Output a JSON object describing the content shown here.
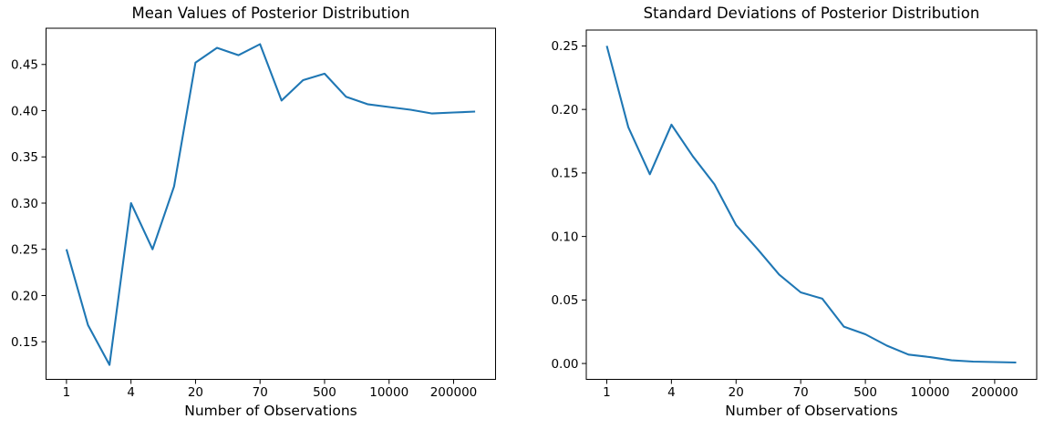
{
  "figure": {
    "background_color": "#ffffff",
    "line_color": "#1f77b4",
    "axis_color": "#000000"
  },
  "chart_data": [
    {
      "type": "line",
      "title": "Mean Values of Posterior Distribution",
      "xlabel": "Number of Observations",
      "ylabel": "",
      "x_axis_note": "20 evenly spaced points indexed 0-19; tick labels show observation counts",
      "x": [
        0,
        1,
        2,
        3,
        4,
        5,
        6,
        7,
        8,
        9,
        10,
        11,
        12,
        13,
        14,
        15,
        16,
        17,
        18,
        19
      ],
      "values": [
        0.25,
        0.168,
        0.125,
        0.3,
        0.25,
        0.318,
        0.452,
        0.468,
        0.46,
        0.472,
        0.411,
        0.433,
        0.44,
        0.415,
        0.407,
        0.404,
        0.401,
        0.397,
        0.398,
        0.399
      ],
      "x_tick_positions": [
        0,
        3,
        6,
        9,
        12,
        15,
        18
      ],
      "x_tick_labels": [
        "1",
        "4",
        "20",
        "70",
        "500",
        "10000",
        "200000"
      ],
      "y_tick_values": [
        0.15,
        0.2,
        0.25,
        0.3,
        0.35,
        0.4,
        0.45
      ],
      "y_tick_labels": [
        "0.15",
        "0.20",
        "0.25",
        "0.30",
        "0.35",
        "0.40",
        "0.45"
      ],
      "xlim": [
        -0.95,
        19.95
      ],
      "ylim": [
        0.1093,
        0.4892
      ],
      "grid": false,
      "legend": null
    },
    {
      "type": "line",
      "title": "Standard Deviations of Posterior Distribution",
      "xlabel": "Number of Observations",
      "ylabel": "",
      "x_axis_note": "20 evenly spaced points indexed 0-19; tick labels show observation counts",
      "x": [
        0,
        1,
        2,
        3,
        4,
        5,
        6,
        7,
        8,
        9,
        10,
        11,
        12,
        13,
        14,
        15,
        16,
        17,
        18,
        19
      ],
      "values": [
        0.25,
        0.186,
        0.149,
        0.188,
        0.163,
        0.141,
        0.109,
        0.09,
        0.07,
        0.056,
        0.051,
        0.029,
        0.023,
        0.014,
        0.007,
        0.005,
        0.0025,
        0.0015,
        0.0011,
        0.0008
      ],
      "x_tick_positions": [
        0,
        3,
        6,
        9,
        12,
        15,
        18
      ],
      "x_tick_labels": [
        "1",
        "4",
        "20",
        "70",
        "500",
        "10000",
        "200000"
      ],
      "y_tick_values": [
        0.0,
        0.05,
        0.1,
        0.15,
        0.2,
        0.25
      ],
      "y_tick_labels": [
        "0.00",
        "0.05",
        "0.10",
        "0.15",
        "0.20",
        "0.25"
      ],
      "xlim": [
        -0.95,
        19.95
      ],
      "ylim": [
        -0.0125,
        0.2625
      ],
      "grid": false,
      "legend": null
    }
  ]
}
